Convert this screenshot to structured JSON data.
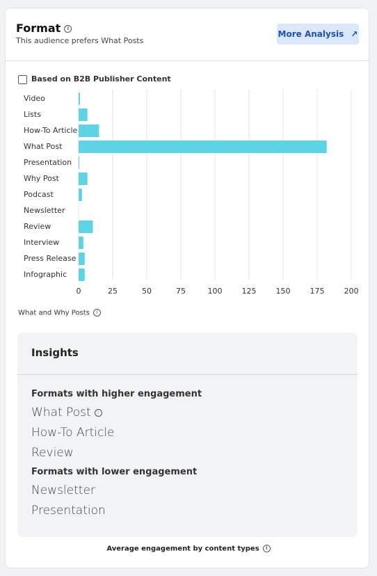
{
  "header": {
    "title": "Format",
    "subtitle": "This audience prefers What Posts",
    "button": "More Analysis"
  },
  "checkbox_label": "Based on B2B Publisher Content",
  "chart_data": {
    "type": "bar",
    "orientation": "horizontal",
    "categories": [
      "Video",
      "Lists",
      "How-To Article",
      "What Post",
      "Presentation",
      "Why Post",
      "Podcast",
      "Newsletter",
      "Review",
      "Interview",
      "Press Release",
      "Infographic"
    ],
    "values": [
      1,
      6.5,
      15,
      182,
      0.5,
      6.5,
      2.5,
      0,
      10.5,
      3.5,
      4.5,
      4.5
    ],
    "color": "#5dd3e6",
    "xlim": [
      0,
      200
    ],
    "xticks": [
      0,
      25,
      50,
      75,
      100,
      125,
      150,
      175,
      200
    ],
    "grid": true
  },
  "chart_caption": "What and Why Posts",
  "insights": {
    "title": "Insights",
    "higher_heading": "Formats with higher engagement",
    "higher": [
      "What Post",
      "How-To Article",
      "Review"
    ],
    "lower_heading": "Formats with lower engagement",
    "lower": [
      "Newsletter",
      "Presentation"
    ]
  },
  "footer": "Average engagement by content types"
}
